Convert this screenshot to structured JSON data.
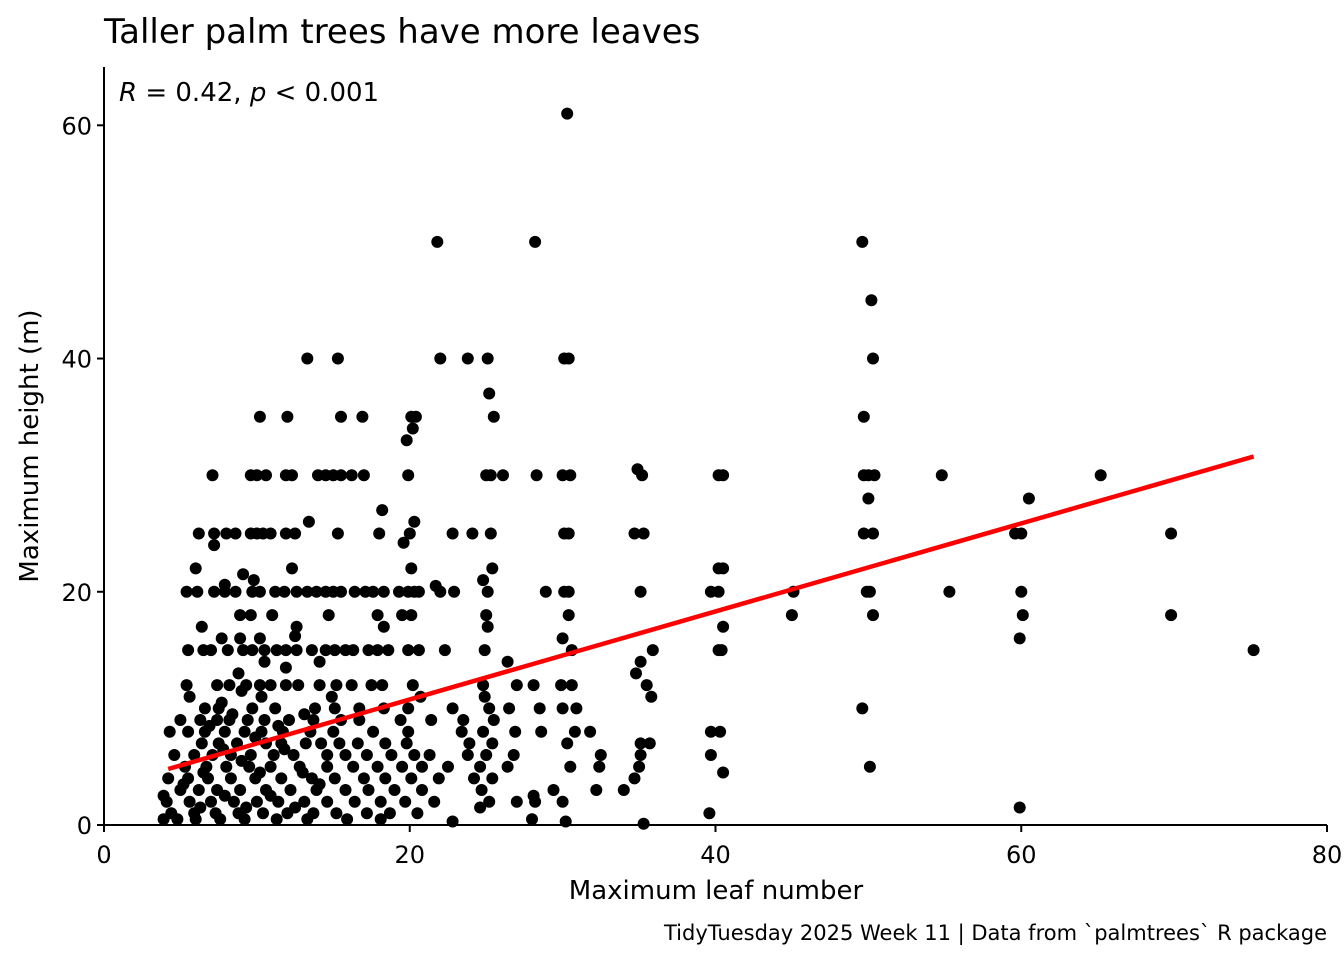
{
  "chart_data": {
    "type": "scatter",
    "title": "Taller palm trees have more leaves",
    "xlabel": "Maximum leaf number",
    "ylabel": "Maximum height (m)",
    "caption": "TidyTuesday 2025 Week 11 | Data from `palmtrees` R package",
    "annotation": {
      "r_symbol": "R",
      "r_text": " = 0.42, ",
      "p_symbol": "p",
      "p_text": " < 0.001"
    },
    "xlim": [
      0,
      80
    ],
    "ylim": [
      0,
      65
    ],
    "x_ticks": [
      0,
      20,
      40,
      60,
      80
    ],
    "y_ticks": [
      0,
      20,
      40,
      60
    ],
    "grid": false,
    "point_color": "#000000",
    "trend_color": "#ff0000",
    "trend_line": {
      "x": [
        4.2,
        75.2
      ],
      "y": [
        4.8,
        31.6
      ]
    },
    "points": [
      [
        30.3,
        61
      ],
      [
        21.8,
        50
      ],
      [
        28.2,
        50
      ],
      [
        49.6,
        50
      ],
      [
        50.2,
        45
      ],
      [
        50.3,
        40
      ],
      [
        13.3,
        40
      ],
      [
        15.3,
        40
      ],
      [
        22.0,
        40
      ],
      [
        23.8,
        40
      ],
      [
        25.1,
        40
      ],
      [
        30.1,
        40
      ],
      [
        30.4,
        40
      ],
      [
        25.2,
        37
      ],
      [
        10.2,
        35
      ],
      [
        12.0,
        35
      ],
      [
        15.5,
        35
      ],
      [
        16.9,
        35
      ],
      [
        20.1,
        35
      ],
      [
        20.4,
        35
      ],
      [
        25.5,
        35
      ],
      [
        49.7,
        35
      ],
      [
        20.2,
        34
      ],
      [
        19.8,
        33
      ],
      [
        7.1,
        30
      ],
      [
        9.6,
        30
      ],
      [
        10.0,
        30
      ],
      [
        10.6,
        30
      ],
      [
        11.9,
        30
      ],
      [
        12.3,
        30
      ],
      [
        14.0,
        30
      ],
      [
        14.5,
        30
      ],
      [
        15.0,
        30
      ],
      [
        15.5,
        30
      ],
      [
        16.2,
        30
      ],
      [
        17.0,
        30
      ],
      [
        19.9,
        30
      ],
      [
        25.0,
        30
      ],
      [
        25.3,
        30
      ],
      [
        26.1,
        30
      ],
      [
        28.3,
        30
      ],
      [
        30.0,
        30
      ],
      [
        30.5,
        30
      ],
      [
        34.9,
        30.5
      ],
      [
        35.2,
        30
      ],
      [
        40.2,
        30
      ],
      [
        40.5,
        30
      ],
      [
        49.7,
        30
      ],
      [
        50.0,
        30
      ],
      [
        50.4,
        30
      ],
      [
        54.8,
        30
      ],
      [
        65.2,
        30
      ],
      [
        50.0,
        28
      ],
      [
        60.5,
        28
      ],
      [
        18.2,
        27
      ],
      [
        13.4,
        26
      ],
      [
        20.3,
        26
      ],
      [
        6.2,
        25
      ],
      [
        7.2,
        25
      ],
      [
        8.0,
        25
      ],
      [
        8.6,
        25
      ],
      [
        9.6,
        25
      ],
      [
        10.0,
        25
      ],
      [
        10.4,
        25
      ],
      [
        10.9,
        25
      ],
      [
        11.9,
        25
      ],
      [
        12.5,
        25
      ],
      [
        15.3,
        25
      ],
      [
        18.0,
        25
      ],
      [
        20.0,
        25
      ],
      [
        22.8,
        25
      ],
      [
        24.1,
        25
      ],
      [
        25.3,
        25
      ],
      [
        30.1,
        25
      ],
      [
        30.4,
        25
      ],
      [
        34.7,
        25
      ],
      [
        35.3,
        25
      ],
      [
        49.7,
        25
      ],
      [
        50.3,
        25
      ],
      [
        59.6,
        25
      ],
      [
        60.0,
        25
      ],
      [
        69.8,
        25
      ],
      [
        7.2,
        24
      ],
      [
        19.6,
        24.2
      ],
      [
        6.0,
        22
      ],
      [
        12.3,
        22
      ],
      [
        20.1,
        22
      ],
      [
        25.4,
        22
      ],
      [
        40.2,
        22
      ],
      [
        40.5,
        22
      ],
      [
        9.8,
        21
      ],
      [
        24.8,
        21
      ],
      [
        7.9,
        20.6
      ],
      [
        21.7,
        20.5
      ],
      [
        9.1,
        21.5
      ],
      [
        5.4,
        20
      ],
      [
        6.1,
        20
      ],
      [
        7.2,
        20
      ],
      [
        7.9,
        20
      ],
      [
        8.6,
        20
      ],
      [
        9.7,
        20
      ],
      [
        10.2,
        20
      ],
      [
        11.2,
        20
      ],
      [
        11.8,
        20
      ],
      [
        12.6,
        20
      ],
      [
        13.3,
        20
      ],
      [
        13.9,
        20
      ],
      [
        14.5,
        20
      ],
      [
        15.0,
        20
      ],
      [
        15.5,
        20
      ],
      [
        16.4,
        20
      ],
      [
        17.1,
        20
      ],
      [
        17.6,
        20
      ],
      [
        18.3,
        20
      ],
      [
        19.3,
        20
      ],
      [
        19.9,
        20
      ],
      [
        20.3,
        20
      ],
      [
        20.6,
        20
      ],
      [
        22.0,
        20
      ],
      [
        22.9,
        20
      ],
      [
        25.1,
        20
      ],
      [
        28.9,
        20
      ],
      [
        30.1,
        20
      ],
      [
        30.4,
        20
      ],
      [
        35.1,
        20
      ],
      [
        39.7,
        20
      ],
      [
        40.2,
        20
      ],
      [
        45.1,
        20
      ],
      [
        49.9,
        20
      ],
      [
        50.1,
        20
      ],
      [
        55.3,
        20
      ],
      [
        60.0,
        20
      ],
      [
        8.9,
        18
      ],
      [
        9.6,
        18
      ],
      [
        11.0,
        18
      ],
      [
        14.7,
        18
      ],
      [
        17.9,
        18
      ],
      [
        19.5,
        18
      ],
      [
        20.1,
        18
      ],
      [
        25.0,
        18
      ],
      [
        30.4,
        18
      ],
      [
        45.0,
        18
      ],
      [
        50.3,
        18
      ],
      [
        60.1,
        18
      ],
      [
        69.8,
        18
      ],
      [
        6.4,
        17
      ],
      [
        12.6,
        17
      ],
      [
        18.3,
        17
      ],
      [
        25.1,
        17
      ],
      [
        40.5,
        17
      ],
      [
        7.7,
        16
      ],
      [
        8.9,
        16
      ],
      [
        10.2,
        16
      ],
      [
        30.0,
        16
      ],
      [
        59.9,
        16
      ],
      [
        12.5,
        16.2
      ],
      [
        5.5,
        15
      ],
      [
        6.5,
        15
      ],
      [
        7.0,
        15
      ],
      [
        8.1,
        15
      ],
      [
        9.1,
        15
      ],
      [
        9.7,
        15
      ],
      [
        10.5,
        15
      ],
      [
        11.3,
        15
      ],
      [
        11.9,
        15
      ],
      [
        12.6,
        15
      ],
      [
        13.6,
        15
      ],
      [
        14.5,
        15
      ],
      [
        15.1,
        15
      ],
      [
        15.8,
        15
      ],
      [
        16.3,
        15
      ],
      [
        17.3,
        15
      ],
      [
        17.9,
        15
      ],
      [
        18.6,
        15
      ],
      [
        19.9,
        15
      ],
      [
        20.6,
        15
      ],
      [
        22.3,
        15
      ],
      [
        24.9,
        15
      ],
      [
        30.6,
        15
      ],
      [
        35.9,
        15
      ],
      [
        40.2,
        15
      ],
      [
        40.4,
        15
      ],
      [
        75.2,
        15
      ],
      [
        10.5,
        14
      ],
      [
        14.1,
        14
      ],
      [
        35.1,
        14
      ],
      [
        26.4,
        14
      ],
      [
        11.9,
        13.5
      ],
      [
        8.8,
        13
      ],
      [
        34.8,
        13
      ],
      [
        5.4,
        12
      ],
      [
        7.4,
        12
      ],
      [
        8.2,
        12
      ],
      [
        9.3,
        12
      ],
      [
        10.2,
        12
      ],
      [
        10.9,
        12
      ],
      [
        11.9,
        12
      ],
      [
        12.7,
        12
      ],
      [
        14.1,
        12
      ],
      [
        15.2,
        12
      ],
      [
        16.2,
        12
      ],
      [
        17.5,
        12
      ],
      [
        18.2,
        12
      ],
      [
        20.2,
        12
      ],
      [
        24.8,
        12
      ],
      [
        27.0,
        12
      ],
      [
        28.1,
        12
      ],
      [
        29.9,
        12
      ],
      [
        30.6,
        12
      ],
      [
        35.5,
        12
      ],
      [
        5.6,
        11
      ],
      [
        10.3,
        11
      ],
      [
        14.9,
        11
      ],
      [
        20.7,
        11
      ],
      [
        24.9,
        11
      ],
      [
        35.8,
        11
      ],
      [
        6.6,
        10
      ],
      [
        7.5,
        10
      ],
      [
        9.7,
        10
      ],
      [
        11.2,
        10
      ],
      [
        13.8,
        10
      ],
      [
        15.1,
        10
      ],
      [
        16.7,
        10
      ],
      [
        18.3,
        10
      ],
      [
        19.9,
        10
      ],
      [
        22.8,
        10
      ],
      [
        25.2,
        10
      ],
      [
        26.5,
        10
      ],
      [
        28.5,
        10
      ],
      [
        30.0,
        10
      ],
      [
        30.9,
        10
      ],
      [
        49.6,
        10
      ],
      [
        5.0,
        9
      ],
      [
        6.3,
        9
      ],
      [
        7.4,
        9
      ],
      [
        8.2,
        9
      ],
      [
        9.4,
        9
      ],
      [
        10.5,
        9
      ],
      [
        12.1,
        9
      ],
      [
        13.7,
        9
      ],
      [
        15.5,
        9
      ],
      [
        16.7,
        9
      ],
      [
        19.4,
        9
      ],
      [
        21.4,
        9
      ],
      [
        23.5,
        9
      ],
      [
        25.5,
        9
      ],
      [
        4.3,
        8
      ],
      [
        5.5,
        8
      ],
      [
        6.6,
        8
      ],
      [
        7.9,
        8
      ],
      [
        9.2,
        8
      ],
      [
        10.3,
        8
      ],
      [
        11.7,
        8
      ],
      [
        13.5,
        8
      ],
      [
        15.0,
        8
      ],
      [
        17.6,
        8
      ],
      [
        19.9,
        8
      ],
      [
        23.4,
        8
      ],
      [
        24.8,
        8
      ],
      [
        26.9,
        8
      ],
      [
        28.6,
        8
      ],
      [
        30.8,
        8
      ],
      [
        31.8,
        8
      ],
      [
        39.7,
        8
      ],
      [
        40.3,
        8
      ],
      [
        6.4,
        7
      ],
      [
        7.5,
        7
      ],
      [
        8.7,
        7
      ],
      [
        10.6,
        7
      ],
      [
        11.6,
        7
      ],
      [
        13.2,
        7
      ],
      [
        14.2,
        7
      ],
      [
        15.4,
        7
      ],
      [
        16.6,
        7
      ],
      [
        18.4,
        7
      ],
      [
        19.8,
        7
      ],
      [
        23.9,
        7
      ],
      [
        25.4,
        7
      ],
      [
        30.3,
        7
      ],
      [
        35.1,
        7
      ],
      [
        35.7,
        7
      ],
      [
        4.6,
        6
      ],
      [
        5.9,
        6
      ],
      [
        7.1,
        6
      ],
      [
        8.3,
        6
      ],
      [
        9.6,
        6
      ],
      [
        11.1,
        6
      ],
      [
        12.4,
        6
      ],
      [
        14.6,
        6
      ],
      [
        15.8,
        6
      ],
      [
        17.2,
        6
      ],
      [
        18.8,
        6
      ],
      [
        20.3,
        6
      ],
      [
        21.3,
        6
      ],
      [
        23.8,
        6
      ],
      [
        25.0,
        6
      ],
      [
        26.8,
        6
      ],
      [
        32.5,
        6
      ],
      [
        35.1,
        6
      ],
      [
        39.7,
        6
      ],
      [
        5.3,
        5
      ],
      [
        6.7,
        5
      ],
      [
        8.0,
        5
      ],
      [
        9.5,
        5
      ],
      [
        10.9,
        5
      ],
      [
        12.8,
        5
      ],
      [
        14.6,
        5
      ],
      [
        16.3,
        5
      ],
      [
        17.9,
        5
      ],
      [
        19.5,
        5
      ],
      [
        20.8,
        5
      ],
      [
        22.5,
        5
      ],
      [
        24.6,
        5
      ],
      [
        26.4,
        5
      ],
      [
        30.5,
        5
      ],
      [
        32.4,
        5
      ],
      [
        35.0,
        5
      ],
      [
        50.1,
        5
      ],
      [
        4.2,
        4
      ],
      [
        5.5,
        4
      ],
      [
        6.8,
        4
      ],
      [
        8.3,
        4
      ],
      [
        9.9,
        4
      ],
      [
        11.6,
        4
      ],
      [
        13.6,
        4
      ],
      [
        15.1,
        4
      ],
      [
        17.0,
        4
      ],
      [
        18.4,
        4
      ],
      [
        20.1,
        4
      ],
      [
        21.9,
        4
      ],
      [
        24.2,
        4
      ],
      [
        25.4,
        4
      ],
      [
        34.7,
        4
      ],
      [
        40.5,
        4.5
      ],
      [
        3.9,
        2.5
      ],
      [
        5.0,
        3
      ],
      [
        6.2,
        3
      ],
      [
        7.4,
        3
      ],
      [
        8.9,
        3
      ],
      [
        10.6,
        3
      ],
      [
        12.2,
        3
      ],
      [
        13.9,
        3
      ],
      [
        15.8,
        3
      ],
      [
        17.3,
        3
      ],
      [
        19.0,
        3
      ],
      [
        20.8,
        3
      ],
      [
        24.7,
        3
      ],
      [
        29.4,
        3
      ],
      [
        32.2,
        3
      ],
      [
        34.0,
        3
      ],
      [
        4.1,
        2
      ],
      [
        5.6,
        2
      ],
      [
        7.0,
        2
      ],
      [
        8.5,
        2
      ],
      [
        10.0,
        2
      ],
      [
        11.4,
        2
      ],
      [
        13.1,
        2
      ],
      [
        14.6,
        2
      ],
      [
        16.4,
        2
      ],
      [
        18.1,
        2
      ],
      [
        19.7,
        2
      ],
      [
        21.6,
        2
      ],
      [
        25.2,
        2
      ],
      [
        27.0,
        2
      ],
      [
        28.2,
        2
      ],
      [
        30.0,
        2
      ],
      [
        4.4,
        1
      ],
      [
        5.9,
        1
      ],
      [
        7.3,
        1
      ],
      [
        8.8,
        1
      ],
      [
        10.4,
        1
      ],
      [
        12.0,
        1
      ],
      [
        13.7,
        1
      ],
      [
        15.2,
        1
      ],
      [
        17.2,
        1
      ],
      [
        18.7,
        1
      ],
      [
        20.5,
        1
      ],
      [
        24.6,
        1.5
      ],
      [
        39.6,
        1
      ],
      [
        59.9,
        1.5
      ],
      [
        28.1,
        2.5
      ],
      [
        3.9,
        0.5
      ],
      [
        4.8,
        0.5
      ],
      [
        6.0,
        0.5
      ],
      [
        7.6,
        0.5
      ],
      [
        9.2,
        0.5
      ],
      [
        11.3,
        0.5
      ],
      [
        13.3,
        0.5
      ],
      [
        15.9,
        0.5
      ],
      [
        18.1,
        0.5
      ],
      [
        22.8,
        0.3
      ],
      [
        28.0,
        0.5
      ],
      [
        30.2,
        0.3
      ],
      [
        35.3,
        0.1
      ],
      [
        5.2,
        3.5
      ],
      [
        6.5,
        4.5
      ],
      [
        7.8,
        6.5
      ],
      [
        9.0,
        5.5
      ],
      [
        10.2,
        4.5
      ],
      [
        11.8,
        6.5
      ],
      [
        13.0,
        4.5
      ],
      [
        14.1,
        3.5
      ],
      [
        6.9,
        8.5
      ],
      [
        8.4,
        9.5
      ],
      [
        9.9,
        7.5
      ],
      [
        11.4,
        8.5
      ],
      [
        13.1,
        9.5
      ],
      [
        7.7,
        10.5
      ],
      [
        9.0,
        11.5
      ],
      [
        6.3,
        1.5
      ],
      [
        7.9,
        2.5
      ],
      [
        9.3,
        1.5
      ],
      [
        10.9,
        2.5
      ],
      [
        12.5,
        1.5
      ]
    ]
  }
}
